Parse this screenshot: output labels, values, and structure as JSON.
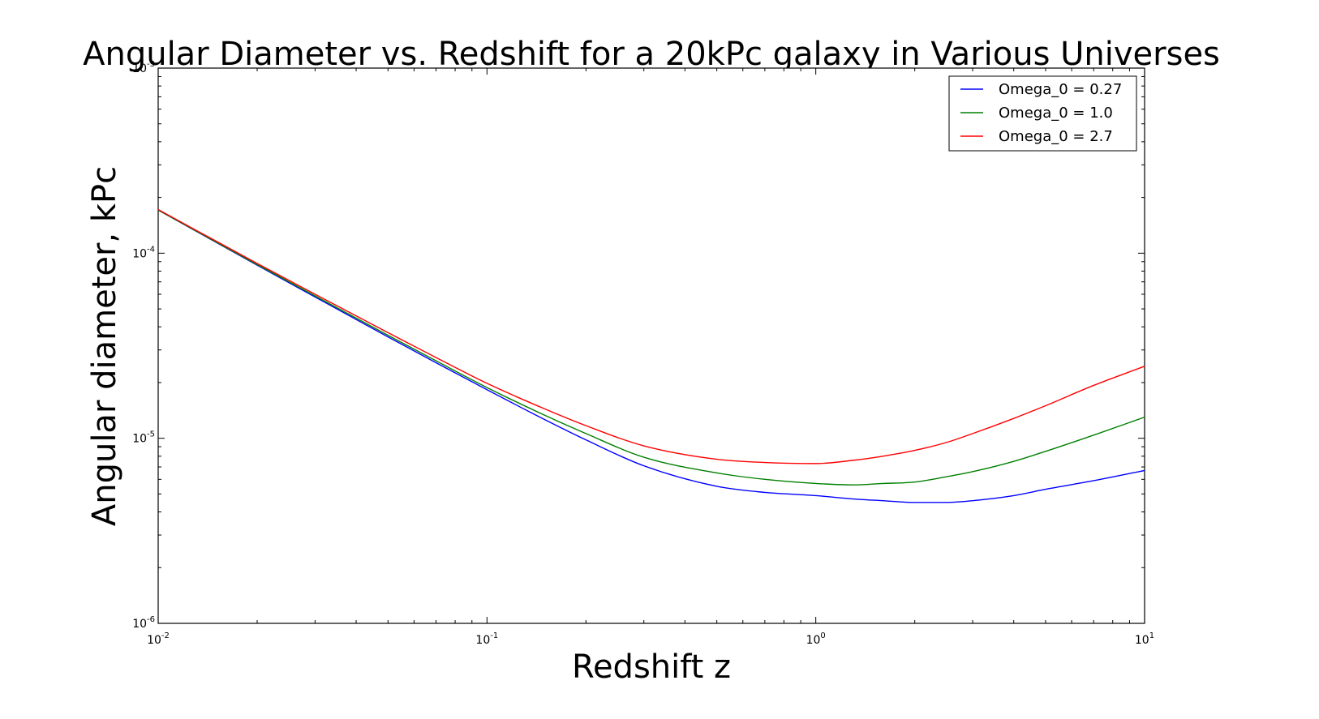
{
  "chart_data": {
    "type": "line",
    "title": "Angular Diameter vs. Redshift for a 20kPc galaxy in Various Universes",
    "xlabel": "Redshift z",
    "ylabel": "Angular diameter, kPc",
    "x_scale": "log",
    "y_scale": "log",
    "xlim": [
      0.01,
      10
    ],
    "ylim": [
      1e-06,
      0.001
    ],
    "x_ticks": [
      {
        "value": 0.01,
        "base": "10",
        "exp": "-2"
      },
      {
        "value": 0.1,
        "base": "10",
        "exp": "-1"
      },
      {
        "value": 1,
        "base": "10",
        "exp": "0"
      },
      {
        "value": 10,
        "base": "10",
        "exp": "1"
      }
    ],
    "y_ticks": [
      {
        "value": 1e-06,
        "base": "10",
        "exp": "-6"
      },
      {
        "value": 1e-05,
        "base": "10",
        "exp": "-5"
      },
      {
        "value": 0.0001,
        "base": "10",
        "exp": "-4"
      },
      {
        "value": 0.001,
        "base": "10",
        "exp": "-3"
      }
    ],
    "grid": false,
    "legend_position": "top-right",
    "series": [
      {
        "name": "Omega_0 = 0.27",
        "color": "#0000ff",
        "x": [
          0.01,
          0.02,
          0.03,
          0.05,
          0.07,
          0.1,
          0.15,
          0.2,
          0.3,
          0.5,
          0.7,
          1.0,
          1.3,
          1.6,
          2.0,
          2.5,
          3.0,
          4.0,
          5.0,
          7.0,
          10.0
        ],
        "y": [
          0.000171,
          8.61e-05,
          5.8e-05,
          3.53e-05,
          2.56e-05,
          1.83e-05,
          1.26e-05,
          9.8e-06,
          7.1e-06,
          5.5e-06,
          5.1e-06,
          4.9e-06,
          4.7e-06,
          4.6e-06,
          4.5e-06,
          4.5e-06,
          4.6e-06,
          4.9e-06,
          5.3e-06,
          5.9e-06,
          6.7e-06
        ]
      },
      {
        "name": "Omega_0 = 1.0",
        "color": "#008000",
        "x": [
          0.01,
          0.02,
          0.03,
          0.05,
          0.07,
          0.1,
          0.15,
          0.2,
          0.3,
          0.5,
          0.7,
          1.0,
          1.3,
          1.6,
          2.0,
          2.5,
          3.0,
          4.0,
          5.0,
          7.0,
          10.0
        ],
        "y": [
          0.000171,
          8.68e-05,
          5.88e-05,
          3.6e-05,
          2.62e-05,
          1.88e-05,
          1.33e-05,
          1.06e-05,
          7.9e-06,
          6.5e-06,
          6e-06,
          5.7e-06,
          5.6e-06,
          5.7e-06,
          5.8e-06,
          6.2e-06,
          6.6e-06,
          7.5e-06,
          8.5e-06,
          1.04e-05,
          1.3e-05
        ]
      },
      {
        "name": "Omega_0 = 2.7",
        "color": "#ff0000",
        "x": [
          0.01,
          0.02,
          0.03,
          0.05,
          0.07,
          0.1,
          0.15,
          0.2,
          0.3,
          0.5,
          0.7,
          1.0,
          1.3,
          1.6,
          2.0,
          2.5,
          3.0,
          4.0,
          5.0,
          7.0,
          10.0
        ],
        "y": [
          0.000172,
          8.8e-05,
          6e-05,
          3.72e-05,
          2.73e-05,
          1.98e-05,
          1.44e-05,
          1.17e-05,
          9.1e-06,
          7.7e-06,
          7.4e-06,
          7.3e-06,
          7.6e-06,
          8e-06,
          8.6e-06,
          9.5e-06,
          1.06e-05,
          1.28e-05,
          1.5e-05,
          1.93e-05,
          2.45e-05
        ]
      }
    ]
  }
}
